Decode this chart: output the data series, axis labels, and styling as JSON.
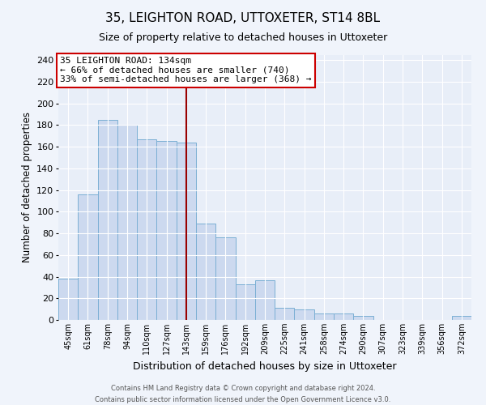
{
  "title": "35, LEIGHTON ROAD, UTTOXETER, ST14 8BL",
  "subtitle": "Size of property relative to detached houses in Uttoxeter",
  "xlabel": "Distribution of detached houses by size in Uttoxeter",
  "ylabel": "Number of detached properties",
  "bin_labels": [
    "45sqm",
    "61sqm",
    "78sqm",
    "94sqm",
    "110sqm",
    "127sqm",
    "143sqm",
    "159sqm",
    "176sqm",
    "192sqm",
    "209sqm",
    "225sqm",
    "241sqm",
    "258sqm",
    "274sqm",
    "290sqm",
    "307sqm",
    "323sqm",
    "339sqm",
    "356sqm",
    "372sqm"
  ],
  "bar_heights": [
    38,
    116,
    185,
    180,
    167,
    165,
    164,
    89,
    76,
    33,
    37,
    11,
    10,
    6,
    6,
    4,
    0,
    0,
    0,
    0,
    4
  ],
  "bar_color": "#ccd9ef",
  "bar_edge_color": "#7bafd4",
  "vline_index": 6,
  "vline_color": "#990000",
  "annotation_text": "35 LEIGHTON ROAD: 134sqm\n← 66% of detached houses are smaller (740)\n33% of semi-detached houses are larger (368) →",
  "annotation_box_color": "#ffffff",
  "annotation_box_edge_color": "#cc0000",
  "ylim": [
    0,
    245
  ],
  "yticks": [
    0,
    20,
    40,
    60,
    80,
    100,
    120,
    140,
    160,
    180,
    200,
    220,
    240
  ],
  "footer_line1": "Contains HM Land Registry data © Crown copyright and database right 2024.",
  "footer_line2": "Contains public sector information licensed under the Open Government Licence v3.0.",
  "bg_color": "#f0f4fb",
  "plot_bg_color": "#e8eef8",
  "title_fontsize": 11,
  "subtitle_fontsize": 9
}
